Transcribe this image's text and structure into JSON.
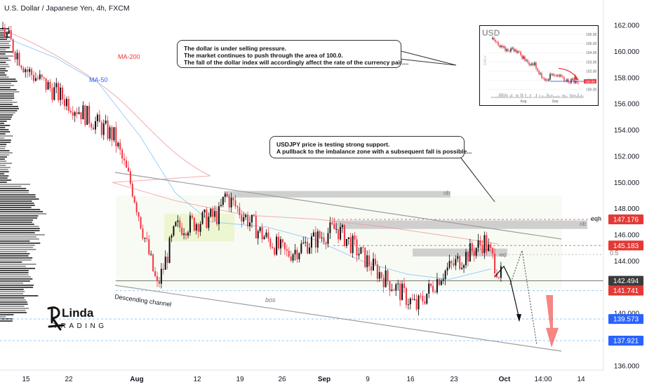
{
  "header": {
    "title": "U.S. Dollar / Japanese Yen, 4h, FXCM"
  },
  "chart_data": {
    "type": "candlestick",
    "title": "U.S. Dollar / Japanese Yen, 4h, FXCM",
    "y_ticks": [
      "162.000",
      "160.000",
      "158.000",
      "156.000",
      "154.000",
      "152.000",
      "150.000",
      "148.000",
      "146.000",
      "144.000",
      "142.000",
      "140.000",
      "138.000",
      "136.000"
    ],
    "x_ticks": [
      "15",
      "22",
      "Aug",
      "12",
      "19",
      "26",
      "Sep",
      "9",
      "16",
      "23",
      "Oct",
      "14:00",
      "14"
    ],
    "ylim": [
      135.9,
      163.2
    ],
    "axis_x_range": [
      "Jul 11",
      "Oct 16"
    ],
    "price_labels": [
      {
        "value": 147.176,
        "text": "147.176",
        "color": "#e53935"
      },
      {
        "value": 145.183,
        "text": "145.183",
        "color": "#e53935"
      },
      {
        "value": 142.494,
        "text": "142.494",
        "color": "#3b3b3b"
      },
      {
        "value": 141.741,
        "text": "141.741",
        "color": "#e53935"
      },
      {
        "value": 139.573,
        "text": "139.573",
        "color": "#2962ff"
      },
      {
        "value": 137.921,
        "text": "137.921",
        "color": "#2962ff"
      }
    ],
    "indicators": [
      {
        "name": "MA-200",
        "color": "#e53935"
      },
      {
        "name": "MA-50",
        "color": "#2962ff"
      }
    ],
    "annotations": {
      "descending_channel": "Descending channel",
      "bos": "bos",
      "ob_upper": "ob",
      "ob_lower": "ob",
      "eq": "eq",
      "eqh": "eqh",
      "fib_level": "0.5"
    },
    "candles_ohlc_summary": [
      {
        "period": "Jul 11",
        "price": 161.7
      },
      {
        "period": "Jul 15",
        "price": 158.5
      },
      {
        "period": "Jul 22",
        "price": 156.0
      },
      {
        "period": "Jul 29",
        "price": 153.5
      },
      {
        "period": "Aug 1",
        "price": 149.5
      },
      {
        "period": "Aug 5",
        "price": 142.0
      },
      {
        "period": "Aug 8",
        "price": 146.5
      },
      {
        "period": "Aug 15",
        "price": 147.5
      },
      {
        "period": "Aug 16",
        "price": 149.0
      },
      {
        "period": "Aug 22",
        "price": 146.0
      },
      {
        "period": "Aug 26",
        "price": 144.5
      },
      {
        "period": "Sep 3",
        "price": 146.5
      },
      {
        "period": "Sep 9",
        "price": 143.5
      },
      {
        "period": "Sep 16",
        "price": 140.5
      },
      {
        "period": "Sep 20",
        "price": 143.0
      },
      {
        "period": "Sep 27",
        "price": 145.5
      },
      {
        "period": "Sep 30",
        "price": 142.5
      }
    ]
  },
  "callouts": {
    "dollar_pressure": [
      "The dollar is under selling pressure.",
      "The market continues to push through the area of 100.0.",
      "The fall of the dollar index will accordingly affect the rate of the currency pair...."
    ],
    "usdjpy_support": [
      "USDJPY price is testing strong support.",
      "A pullback to the imbalance zone with a subsequent fall is possible..."
    ]
  },
  "inset": {
    "symbol": "USD",
    "side_label": "DAILY",
    "y_ticks": [
      "106.00",
      "105.00",
      "104.00",
      "103.00",
      "102.00",
      "101.00",
      "100.00"
    ],
    "x_ticks": [
      "Aug",
      "Sep"
    ],
    "last_price": "100.88"
  },
  "logo": {
    "text_top": "Linda",
    "text_bottom": "TRADING"
  },
  "colors": {
    "up": "#089981",
    "down": "#f23645",
    "channel": "#9e9e9e",
    "zone_green": "#e8f5c8",
    "zone_grey": "#cfcfcf",
    "accent_blue": "#2962ff",
    "accent_red": "#e53935"
  }
}
